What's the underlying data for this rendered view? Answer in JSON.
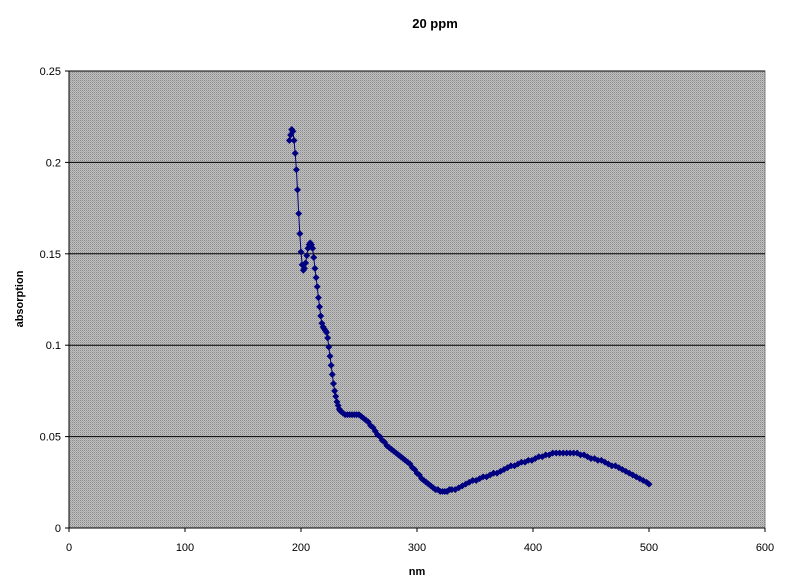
{
  "chart_data": {
    "type": "scatter",
    "title": "20 ppm",
    "xlabel": "nm",
    "ylabel": "absorption",
    "xlim": [
      0,
      600
    ],
    "ylim": [
      0,
      0.25
    ],
    "x_ticks": [
      "0",
      "100",
      "200",
      "300",
      "400",
      "500",
      "600"
    ],
    "y_ticks": [
      "0",
      "0.05",
      "0.1",
      "0.15",
      "0.2",
      "0.25"
    ],
    "grid": "horizontal major gridlines",
    "plot_background": "gray hatched",
    "series": [
      {
        "color": "#000080",
        "marker": "diamond",
        "line": true,
        "points": [
          [
            190,
            0.212
          ],
          [
            191,
            0.215
          ],
          [
            192,
            0.218
          ],
          [
            193,
            0.217
          ],
          [
            194,
            0.212
          ],
          [
            195,
            0.205
          ],
          [
            196,
            0.196
          ],
          [
            197,
            0.185
          ],
          [
            198,
            0.172
          ],
          [
            199,
            0.161
          ],
          [
            200,
            0.151
          ],
          [
            201,
            0.144
          ],
          [
            202,
            0.141
          ],
          [
            203,
            0.142
          ],
          [
            204,
            0.145
          ],
          [
            205,
            0.149
          ],
          [
            206,
            0.153
          ],
          [
            207,
            0.155
          ],
          [
            208,
            0.156
          ],
          [
            209,
            0.155
          ],
          [
            210,
            0.153
          ],
          [
            211,
            0.148
          ],
          [
            212,
            0.142
          ],
          [
            213,
            0.137
          ],
          [
            214,
            0.132
          ],
          [
            215,
            0.126
          ],
          [
            216,
            0.121
          ],
          [
            217,
            0.116
          ],
          [
            218,
            0.112
          ],
          [
            219,
            0.11
          ],
          [
            220,
            0.109
          ],
          [
            221,
            0.108
          ],
          [
            222,
            0.107
          ],
          [
            223,
            0.104
          ],
          [
            224,
            0.099
          ],
          [
            225,
            0.094
          ],
          [
            226,
            0.089
          ],
          [
            227,
            0.084
          ],
          [
            228,
            0.079
          ],
          [
            229,
            0.075
          ],
          [
            230,
            0.072
          ],
          [
            231,
            0.069
          ],
          [
            232,
            0.067
          ],
          [
            233,
            0.065
          ],
          [
            234,
            0.064
          ],
          [
            236,
            0.063
          ],
          [
            238,
            0.062
          ],
          [
            240,
            0.062
          ],
          [
            242,
            0.062
          ],
          [
            244,
            0.062
          ],
          [
            246,
            0.062
          ],
          [
            248,
            0.062
          ],
          [
            250,
            0.062
          ],
          [
            252,
            0.061
          ],
          [
            254,
            0.06
          ],
          [
            256,
            0.059
          ],
          [
            258,
            0.058
          ],
          [
            260,
            0.056
          ],
          [
            262,
            0.055
          ],
          [
            264,
            0.053
          ],
          [
            266,
            0.051
          ],
          [
            268,
            0.05
          ],
          [
            270,
            0.048
          ],
          [
            272,
            0.047
          ],
          [
            274,
            0.045
          ],
          [
            276,
            0.044
          ],
          [
            278,
            0.043
          ],
          [
            280,
            0.042
          ],
          [
            282,
            0.041
          ],
          [
            284,
            0.04
          ],
          [
            286,
            0.039
          ],
          [
            288,
            0.038
          ],
          [
            290,
            0.037
          ],
          [
            292,
            0.036
          ],
          [
            294,
            0.035
          ],
          [
            296,
            0.033
          ],
          [
            298,
            0.032
          ],
          [
            300,
            0.03
          ],
          [
            302,
            0.029
          ],
          [
            304,
            0.027
          ],
          [
            306,
            0.026
          ],
          [
            308,
            0.025
          ],
          [
            310,
            0.024
          ],
          [
            312,
            0.023
          ],
          [
            314,
            0.022
          ],
          [
            316,
            0.021
          ],
          [
            318,
            0.021
          ],
          [
            320,
            0.02
          ],
          [
            322,
            0.02
          ],
          [
            324,
            0.02
          ],
          [
            326,
            0.02
          ],
          [
            328,
            0.021
          ],
          [
            330,
            0.021
          ],
          [
            333,
            0.021
          ],
          [
            336,
            0.022
          ],
          [
            339,
            0.023
          ],
          [
            342,
            0.024
          ],
          [
            345,
            0.025
          ],
          [
            348,
            0.026
          ],
          [
            351,
            0.026
          ],
          [
            354,
            0.027
          ],
          [
            357,
            0.028
          ],
          [
            360,
            0.028
          ],
          [
            363,
            0.029
          ],
          [
            366,
            0.03
          ],
          [
            369,
            0.03
          ],
          [
            372,
            0.031
          ],
          [
            375,
            0.032
          ],
          [
            378,
            0.033
          ],
          [
            381,
            0.034
          ],
          [
            384,
            0.034
          ],
          [
            387,
            0.035
          ],
          [
            390,
            0.036
          ],
          [
            393,
            0.036
          ],
          [
            396,
            0.037
          ],
          [
            399,
            0.037
          ],
          [
            402,
            0.038
          ],
          [
            405,
            0.039
          ],
          [
            408,
            0.039
          ],
          [
            411,
            0.04
          ],
          [
            414,
            0.04
          ],
          [
            417,
            0.041
          ],
          [
            420,
            0.041
          ],
          [
            423,
            0.041
          ],
          [
            426,
            0.041
          ],
          [
            429,
            0.041
          ],
          [
            432,
            0.041
          ],
          [
            435,
            0.041
          ],
          [
            438,
            0.041
          ],
          [
            441,
            0.04
          ],
          [
            444,
            0.04
          ],
          [
            447,
            0.039
          ],
          [
            450,
            0.038
          ],
          [
            453,
            0.038
          ],
          [
            456,
            0.037
          ],
          [
            459,
            0.037
          ],
          [
            462,
            0.036
          ],
          [
            465,
            0.035
          ],
          [
            468,
            0.034
          ],
          [
            471,
            0.034
          ],
          [
            474,
            0.033
          ],
          [
            477,
            0.032
          ],
          [
            480,
            0.031
          ],
          [
            483,
            0.03
          ],
          [
            486,
            0.029
          ],
          [
            489,
            0.028
          ],
          [
            492,
            0.027
          ],
          [
            495,
            0.026
          ],
          [
            498,
            0.025
          ],
          [
            500,
            0.024
          ]
        ]
      }
    ]
  }
}
